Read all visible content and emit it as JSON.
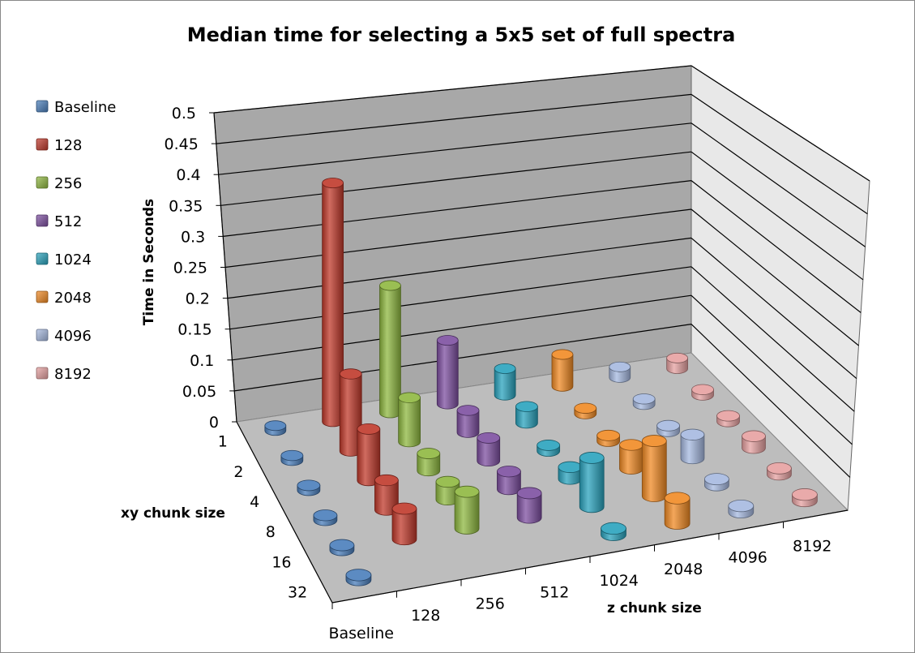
{
  "chart_data": {
    "type": "bar-3d-cylinder",
    "title": "Median time for selecting a 5x5 set of full spectra",
    "zlabel": "Time in Seconds",
    "xlabel": "z chunk size",
    "ylabel": "xy chunk size",
    "zlim": [
      0,
      0.5
    ],
    "z_ticks": [
      "0",
      "0.05",
      "0.1",
      "0.15",
      "0.2",
      "0.25",
      "0.3",
      "0.35",
      "0.4",
      "0.45",
      "0.5"
    ],
    "z_categories": [
      "Baseline",
      "128",
      "256",
      "512",
      "1024",
      "2048",
      "4096",
      "8192"
    ],
    "xy_categories": [
      "1",
      "2",
      "4",
      "8",
      "16",
      "32"
    ],
    "legend_position": "left",
    "series": [
      {
        "name": "Baseline",
        "color": "#4a7ebb",
        "values": [
          0.004,
          0.004,
          0.004,
          0.004,
          0.004,
          0.004
        ]
      },
      {
        "name": "128",
        "color": "#c0392b",
        "values": [
          0.45,
          0.14,
          0.09,
          0.05,
          0.05,
          null
        ]
      },
      {
        "name": "256",
        "color": "#8fb840",
        "values": [
          0.24,
          0.08,
          0.03,
          0.03,
          0.06,
          null
        ]
      },
      {
        "name": "512",
        "color": "#7d4fa0",
        "values": [
          0.12,
          0.04,
          0.04,
          0.03,
          0.04,
          null
        ]
      },
      {
        "name": "1024",
        "color": "#2aa3bd",
        "values": [
          0.05,
          0.03,
          0.01,
          0.02,
          0.08,
          0.01
        ]
      },
      {
        "name": "2048",
        "color": "#f08a24",
        "values": [
          0.06,
          0.01,
          0.01,
          0.04,
          0.09,
          0.04
        ]
      },
      {
        "name": "4096",
        "color": "#a6b9e0",
        "values": [
          0.02,
          0.01,
          0.01,
          0.04,
          0.01,
          0.01
        ]
      },
      {
        "name": "8192",
        "color": "#e6a1a1",
        "values": [
          0.02,
          0.01,
          0.01,
          0.02,
          0.01,
          0.01
        ]
      }
    ]
  }
}
